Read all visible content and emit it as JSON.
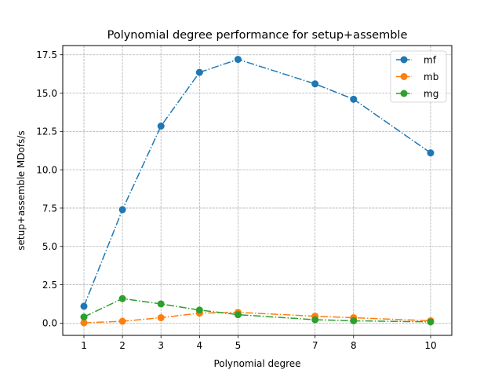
{
  "chart_data": {
    "type": "line",
    "title": "Polynomial degree performance for setup+assemble",
    "xlabel": "Polynomial degree",
    "ylabel": "setup+assemble MDofs/s",
    "x": [
      1,
      2,
      3,
      4,
      5,
      7,
      8,
      10
    ],
    "xticks": [
      "1",
      "2",
      "3",
      "4",
      "5",
      "7",
      "8",
      "10"
    ],
    "yticks": [
      "0.0",
      "2.5",
      "5.0",
      "7.5",
      "10.0",
      "12.5",
      "15.0",
      "17.5"
    ],
    "xlim": [
      0.45,
      10.55
    ],
    "ylim": [
      -0.8,
      18.1
    ],
    "grid": true,
    "legend_position": "top-right",
    "series": [
      {
        "name": "mf",
        "color": "#1f77b4",
        "linestyle": "dashdot",
        "marker": "circle",
        "values": [
          1.1,
          7.4,
          12.85,
          16.35,
          17.2,
          15.6,
          14.6,
          11.1
        ]
      },
      {
        "name": "mb",
        "color": "#ff7f0e",
        "linestyle": "dashdot",
        "marker": "circle",
        "values": [
          0.02,
          0.12,
          0.35,
          0.65,
          0.7,
          0.45,
          0.35,
          0.15
        ]
      },
      {
        "name": "mg",
        "color": "#2ca02c",
        "linestyle": "dashdot",
        "marker": "circle",
        "values": [
          0.4,
          1.6,
          1.25,
          0.85,
          0.55,
          0.22,
          0.15,
          0.08
        ]
      }
    ]
  }
}
